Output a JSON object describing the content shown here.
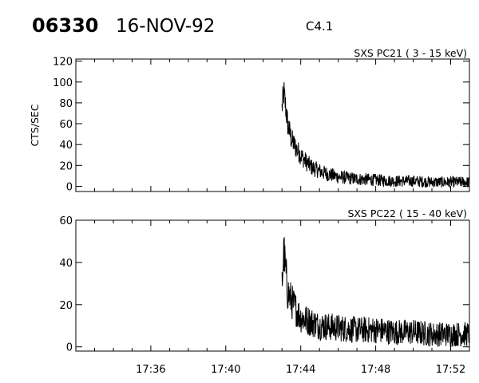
{
  "header": {
    "flare_id": "06330",
    "date": "16-NOV-92",
    "goes_class": "C4.1"
  },
  "chart_data": [
    {
      "type": "line",
      "title": "SXS PC21  (  3 - 15 keV)",
      "ylabel": "CTS/SEC",
      "xlabel": "",
      "x_unit": "UT time (HH:MM)",
      "xlim": [
        "17:32",
        "17:53"
      ],
      "xticks": [
        "17:36",
        "17:40",
        "17:44",
        "17:48",
        "17:52"
      ],
      "ylim": [
        -5,
        122
      ],
      "yticks": [
        0,
        20,
        40,
        60,
        80,
        100,
        120
      ],
      "series": [
        {
          "x": [
            "17:43.0",
            "17:43.1",
            "17:43.3",
            "17:43.5",
            "17:43.8",
            "17:44.2",
            "17:44.6",
            "17:45.2",
            "17:46.0",
            "17:47.0",
            "17:48.0",
            "17:49.0",
            "17:50.0",
            "17:51.0",
            "17:52.0",
            "17:53.0"
          ],
          "values": [
            75,
            90,
            60,
            45,
            35,
            25,
            18,
            13,
            9,
            7,
            6,
            5,
            5,
            4,
            4,
            4
          ]
        }
      ]
    },
    {
      "type": "line",
      "title": "SXS PC22  ( 15 - 40 keV)",
      "ylabel": "",
      "xlabel": "",
      "x_unit": "UT time (HH:MM)",
      "xlim": [
        "17:32",
        "17:53"
      ],
      "xticks": [
        "17:36",
        "17:40",
        "17:44",
        "17:48",
        "17:52"
      ],
      "ylim": [
        -2,
        60
      ],
      "yticks": [
        0,
        20,
        40,
        60
      ],
      "series": [
        {
          "x": [
            "17:43.0",
            "17:43.1",
            "17:43.3",
            "17:43.6",
            "17:44.0",
            "17:44.5",
            "17:45.0",
            "17:46.0",
            "17:47.0",
            "17:48.0",
            "17:49.0",
            "17:50.0",
            "17:51.0",
            "17:52.0",
            "17:53.0"
          ],
          "values": [
            30,
            45,
            26,
            20,
            14,
            12,
            10,
            9,
            8,
            8,
            7,
            7,
            6,
            6,
            6
          ]
        }
      ]
    }
  ]
}
